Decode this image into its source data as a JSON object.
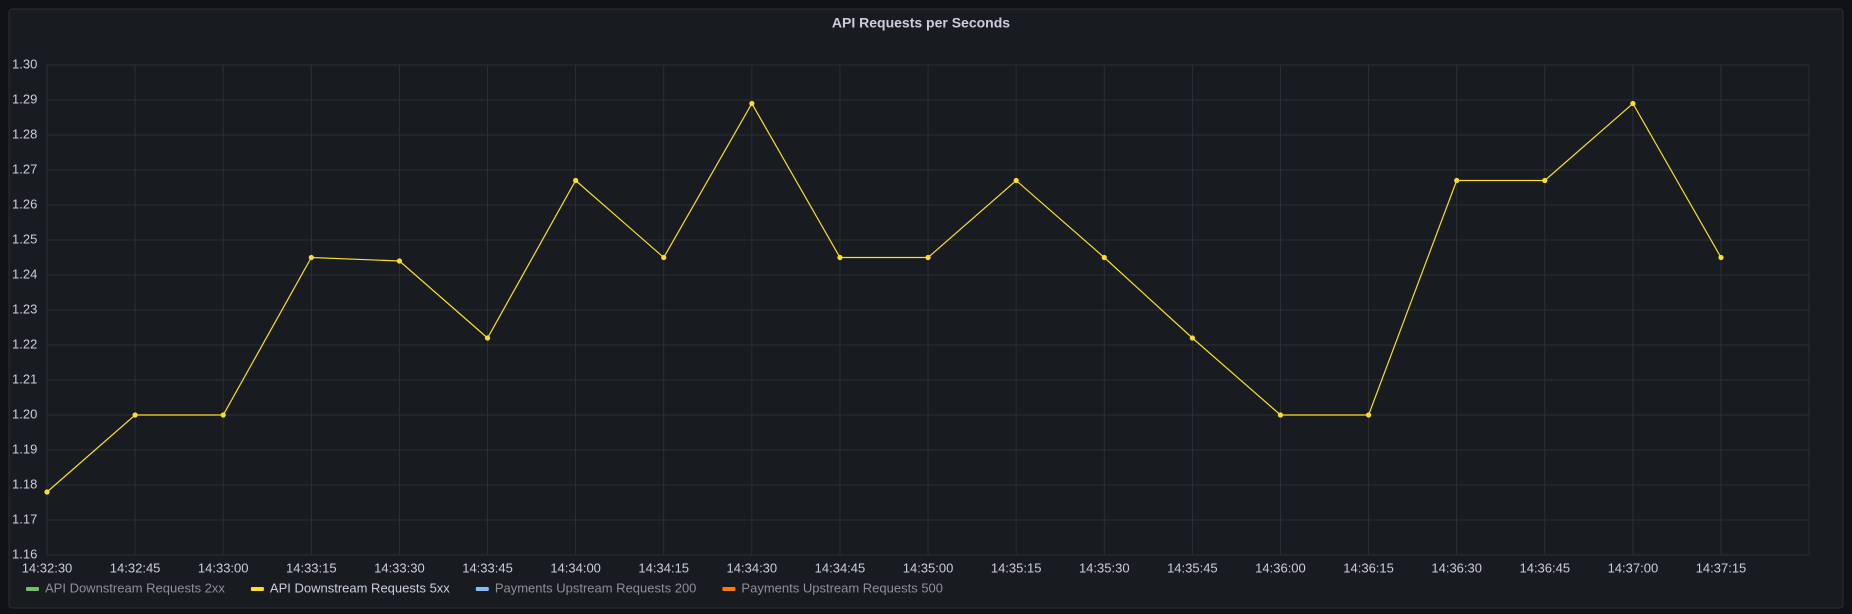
{
  "chart_data": {
    "type": "line",
    "title": "API Requests per Seconds",
    "categories": [
      "14:32:30",
      "14:32:45",
      "14:33:00",
      "14:33:15",
      "14:33:30",
      "14:33:45",
      "14:34:00",
      "14:34:15",
      "14:34:30",
      "14:34:45",
      "14:35:00",
      "14:35:15",
      "14:35:30",
      "14:35:45",
      "14:36:00",
      "14:36:15",
      "14:36:30",
      "14:36:45",
      "14:37:00",
      "14:37:15"
    ],
    "series": [
      {
        "name": "API Downstream Requests 5xx",
        "color": "#fade2a",
        "values": [
          1.178,
          1.2,
          1.2,
          1.245,
          1.244,
          1.222,
          1.267,
          1.245,
          1.289,
          1.245,
          1.245,
          1.267,
          1.245,
          1.222,
          1.2,
          1.2,
          1.267,
          1.267,
          1.289,
          1.245
        ]
      }
    ],
    "legend": [
      {
        "name": "API Downstream Requests 2xx",
        "color": "#73bf69"
      },
      {
        "name": "API Downstream Requests 5xx",
        "color": "#fade2a"
      },
      {
        "name": "Payments Upstream Requests 200",
        "color": "#8ab8ff"
      },
      {
        "name": "Payments Upstream Requests 500",
        "color": "#ff780a"
      }
    ],
    "ylim": [
      1.16,
      1.3
    ],
    "yticks": [
      1.16,
      1.17,
      1.18,
      1.19,
      {
        "value": 1.2,
        "label": "1.20"
      },
      1.21,
      1.22,
      1.23,
      1.24,
      1.25,
      1.26,
      1.27,
      1.28,
      1.29,
      {
        "value": 1.3,
        "label": "1.30"
      }
    ],
    "grid": true
  }
}
